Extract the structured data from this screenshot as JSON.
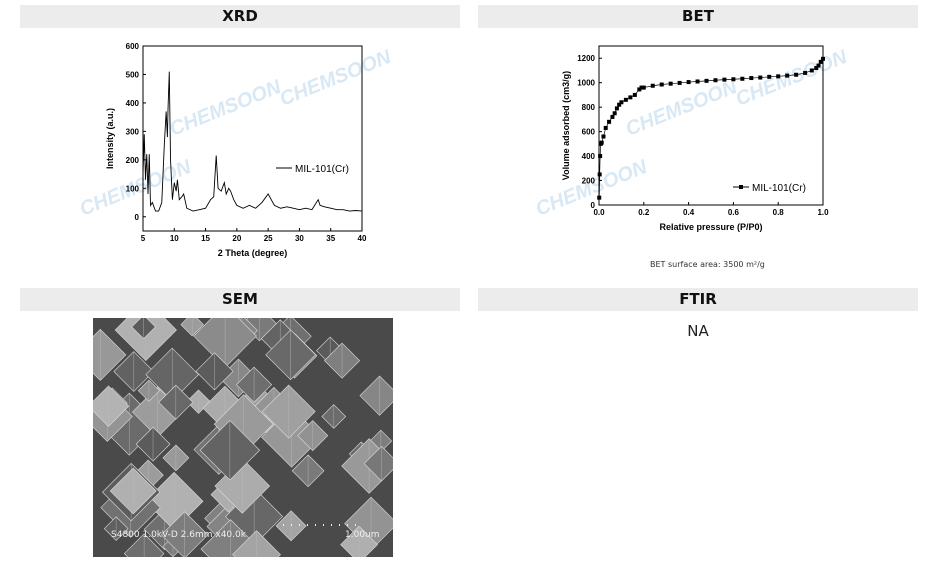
{
  "sections": {
    "xrd": "XRD",
    "bet": "BET",
    "sem": "SEM",
    "ftir": "FTIR"
  },
  "ftir_value": "NA",
  "bet_note": "BET surface area: 3500 m²/g",
  "sem_caption": {
    "info": "S4800 1.0kV-D 2.6mm x40.0k",
    "scale": "1.00um"
  },
  "watermark": "CHEMSOON",
  "chart_data": [
    {
      "type": "line",
      "xlabel": "2 Theta (degree)",
      "ylabel": "Intensity (a.u.)",
      "xlim": [
        5,
        40
      ],
      "ylim": [
        -50,
        600
      ],
      "xticks": [
        5,
        10,
        15,
        20,
        25,
        30,
        35,
        40
      ],
      "yticks": [
        0,
        100,
        200,
        300,
        400,
        500,
        600
      ],
      "series": [
        {
          "name": "MIL-101(Cr)",
          "x": [
            5,
            5.2,
            5.4,
            5.6,
            5.8,
            6.0,
            6.2,
            6.5,
            7,
            7.5,
            8,
            8.4,
            8.7,
            8.9,
            9.0,
            9.2,
            9.4,
            9.7,
            10,
            10.3,
            10.5,
            10.8,
            11.2,
            11.5,
            12,
            13,
            14,
            15,
            15.8,
            16.3,
            16.7,
            17,
            17.5,
            18,
            18.3,
            18.7,
            19,
            19.5,
            20,
            21,
            22,
            23,
            24,
            25,
            25.5,
            26,
            27,
            28,
            29,
            30,
            31,
            32,
            33,
            33.3,
            34,
            35,
            36,
            37,
            38,
            39,
            40
          ],
          "y": [
            150,
            290,
            130,
            220,
            80,
            220,
            40,
            50,
            20,
            20,
            50,
            250,
            370,
            280,
            380,
            510,
            200,
            60,
            120,
            90,
            130,
            60,
            70,
            80,
            30,
            20,
            25,
            30,
            60,
            70,
            215,
            100,
            90,
            120,
            80,
            100,
            90,
            60,
            40,
            30,
            40,
            30,
            50,
            80,
            60,
            40,
            30,
            35,
            30,
            25,
            30,
            25,
            60,
            40,
            35,
            30,
            25,
            25,
            20,
            22,
            20
          ]
        }
      ]
    },
    {
      "type": "scatter",
      "xlabel": "Relative pressure (P/P0)",
      "ylabel": "Volume adsorbed (cm3/g)",
      "xlim": [
        0,
        1
      ],
      "ylim": [
        0,
        1300
      ],
      "xticks": [
        0.0,
        0.2,
        0.4,
        0.6,
        0.8,
        1.0
      ],
      "yticks": [
        0,
        200,
        400,
        600,
        800,
        1000,
        1200
      ],
      "series": [
        {
          "name": "MIL-101(Cr)",
          "x": [
            0.001,
            0.003,
            0.005,
            0.008,
            0.012,
            0.02,
            0.03,
            0.045,
            0.06,
            0.07,
            0.08,
            0.09,
            0.1,
            0.12,
            0.14,
            0.16,
            0.18,
            0.19,
            0.2,
            0.24,
            0.28,
            0.32,
            0.36,
            0.4,
            0.44,
            0.48,
            0.52,
            0.56,
            0.6,
            0.64,
            0.68,
            0.72,
            0.76,
            0.8,
            0.84,
            0.88,
            0.92,
            0.95,
            0.97,
            0.98,
            0.99,
            1.0
          ],
          "y": [
            60,
            250,
            400,
            500,
            510,
            560,
            630,
            680,
            720,
            750,
            790,
            820,
            840,
            860,
            880,
            900,
            945,
            960,
            960,
            975,
            985,
            992,
            998,
            1005,
            1010,
            1015,
            1020,
            1025,
            1028,
            1032,
            1038,
            1042,
            1048,
            1052,
            1058,
            1065,
            1080,
            1100,
            1120,
            1140,
            1170,
            1195
          ]
        }
      ]
    }
  ]
}
